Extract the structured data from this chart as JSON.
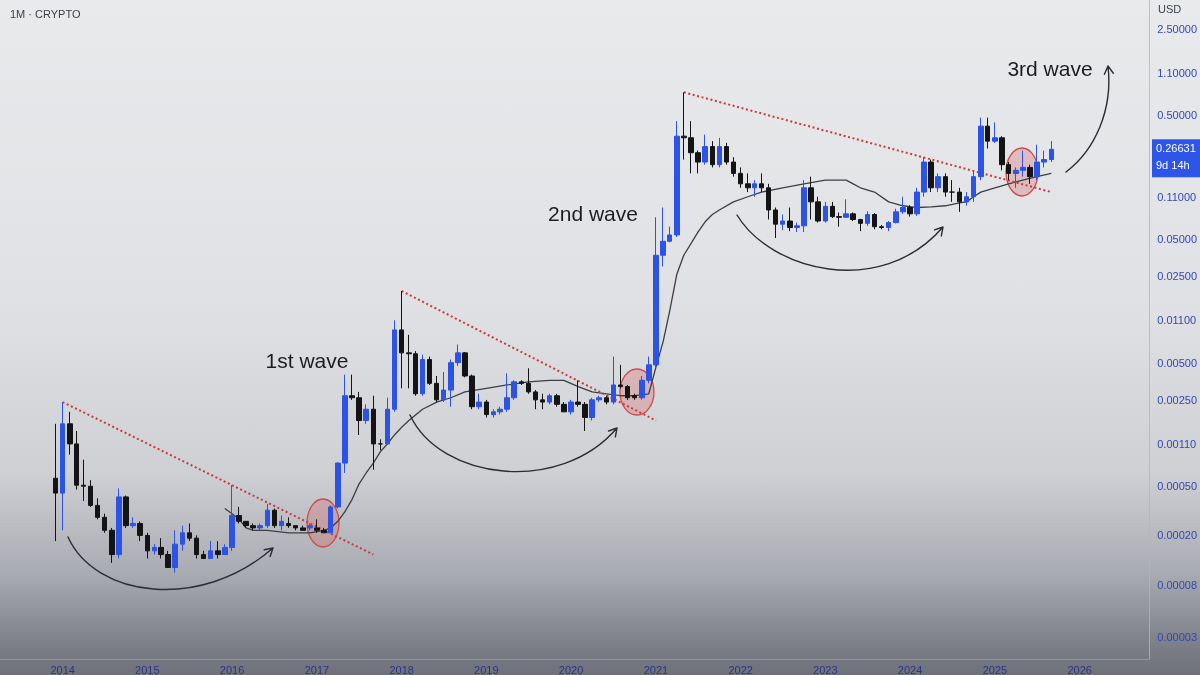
{
  "chart_data": {
    "type": "candlestick",
    "title": "1M · CRYPTO",
    "ylabel": "USD",
    "x": [
      "2013-12",
      "2014-01",
      "2014-02",
      "2014-03",
      "2014-04",
      "2014-05",
      "2014-06",
      "2014-07",
      "2014-08",
      "2014-09",
      "2014-10",
      "2014-11",
      "2014-12",
      "2015-01",
      "2015-02",
      "2015-03",
      "2015-04",
      "2015-05",
      "2015-06",
      "2015-07",
      "2015-08",
      "2015-09",
      "2015-10",
      "2015-11",
      "2015-12",
      "2016-01",
      "2016-02",
      "2016-03",
      "2016-04",
      "2016-05",
      "2016-06",
      "2016-07",
      "2016-08",
      "2016-09",
      "2016-10",
      "2016-11",
      "2016-12",
      "2017-01",
      "2017-02",
      "2017-03",
      "2017-04",
      "2017-05",
      "2017-06",
      "2017-07",
      "2017-08",
      "2017-09",
      "2017-10",
      "2017-11",
      "2017-12",
      "2018-01",
      "2018-02",
      "2018-03",
      "2018-04",
      "2018-05",
      "2018-06",
      "2018-07",
      "2018-08",
      "2018-09",
      "2018-10",
      "2018-11",
      "2018-12",
      "2019-01",
      "2019-02",
      "2019-03",
      "2019-04",
      "2019-05",
      "2019-06",
      "2019-07",
      "2019-08",
      "2019-09",
      "2019-10",
      "2019-11",
      "2019-12",
      "2020-01",
      "2020-02",
      "2020-03",
      "2020-04",
      "2020-05",
      "2020-06",
      "2020-07",
      "2020-08",
      "2020-09",
      "2020-10",
      "2020-11",
      "2020-12",
      "2021-01",
      "2021-02",
      "2021-03",
      "2021-04",
      "2021-05",
      "2021-06",
      "2021-07",
      "2021-08",
      "2021-09",
      "2021-10",
      "2021-11",
      "2021-12",
      "2022-01",
      "2022-02",
      "2022-03",
      "2022-04",
      "2022-05",
      "2022-06",
      "2022-07",
      "2022-08",
      "2022-09",
      "2022-10",
      "2022-11",
      "2022-12",
      "2023-01",
      "2023-02",
      "2023-03",
      "2023-04",
      "2023-05",
      "2023-06",
      "2023-07",
      "2023-08",
      "2023-09",
      "2023-10",
      "2023-11",
      "2023-12",
      "2024-01",
      "2024-02",
      "2024-03",
      "2024-04",
      "2024-05",
      "2024-06",
      "2024-07",
      "2024-08",
      "2024-09",
      "2024-10",
      "2024-11",
      "2024-12",
      "2025-01",
      "2025-02",
      "2025-03",
      "2025-04",
      "2025-05",
      "2025-06",
      "2025-07",
      "2025-08",
      "2025-09"
    ],
    "ohlc": [
      [
        0.00058,
        0.0016,
        0.00018,
        0.00044
      ],
      [
        0.00044,
        0.0024,
        0.00022,
        0.0016
      ],
      [
        0.0016,
        0.002,
        0.0009,
        0.0011
      ],
      [
        0.0011,
        0.0014,
        0.00047,
        0.00051
      ],
      [
        0.00051,
        0.00082,
        0.00038,
        0.0005
      ],
      [
        0.0005,
        0.00056,
        0.00034,
        0.00035
      ],
      [
        0.00035,
        0.0004,
        0.00027,
        0.00028
      ],
      [
        0.00028,
        0.0003,
        0.00021,
        0.00022
      ],
      [
        0.00022,
        0.00023,
        0.00012,
        0.00014
      ],
      [
        0.00014,
        0.00048,
        0.00013,
        0.00041
      ],
      [
        0.00041,
        0.00042,
        0.00023,
        0.00024
      ],
      [
        0.00024,
        0.00028,
        0.00023,
        0.00025
      ],
      [
        0.00025,
        0.00026,
        0.00018,
        0.0002
      ],
      [
        0.0002,
        0.00021,
        0.00013,
        0.00015
      ],
      [
        0.00015,
        0.00017,
        0.00014,
        0.00016
      ],
      [
        0.00016,
        0.00019,
        0.00013,
        0.00014
      ],
      [
        0.00014,
        0.00015,
        0.00011,
        0.00011
      ],
      [
        0.00011,
        0.00022,
        0.0001,
        0.00017
      ],
      [
        0.00017,
        0.00024,
        0.00015,
        0.00021
      ],
      [
        0.00021,
        0.00025,
        0.00018,
        0.00019
      ],
      [
        0.00019,
        0.0002,
        0.00013,
        0.00014
      ],
      [
        0.00014,
        0.00015,
        0.00013,
        0.00013
      ],
      [
        0.00013,
        0.00018,
        0.00013,
        0.00015
      ],
      [
        0.00015,
        0.00018,
        0.00013,
        0.00014
      ],
      [
        0.00014,
        0.00017,
        0.00014,
        0.00016
      ],
      [
        0.00016,
        0.00051,
        0.00015,
        0.00029
      ],
      [
        0.00029,
        0.00034,
        0.00025,
        0.00026
      ],
      [
        0.00026,
        0.00026,
        0.00023,
        0.00024
      ],
      [
        0.00024,
        0.00025,
        0.00022,
        0.00023
      ],
      [
        0.00023,
        0.00025,
        0.00022,
        0.00024
      ],
      [
        0.00024,
        0.00036,
        0.00023,
        0.00032
      ],
      [
        0.00032,
        0.00033,
        0.00023,
        0.00024
      ],
      [
        0.00024,
        0.00029,
        0.00022,
        0.00026
      ],
      [
        0.00025,
        0.00028,
        0.00023,
        0.00024
      ],
      [
        0.00024,
        0.00024,
        0.00022,
        0.00023
      ],
      [
        0.00023,
        0.00024,
        0.00022,
        0.00022
      ],
      [
        0.00023,
        0.00025,
        0.00022,
        0.00024
      ],
      [
        0.00023,
        0.00027,
        0.00021,
        0.00022
      ],
      [
        0.00022,
        0.00023,
        0.00021,
        0.00021
      ],
      [
        0.00021,
        0.00035,
        0.00021,
        0.00034
      ],
      [
        0.00034,
        0.00078,
        0.00033,
        0.00077
      ],
      [
        0.00077,
        0.004,
        0.00064,
        0.0027
      ],
      [
        0.0027,
        0.004,
        0.0025,
        0.0026
      ],
      [
        0.0026,
        0.0029,
        0.0013,
        0.0017
      ],
      [
        0.0017,
        0.0023,
        0.0016,
        0.0021
      ],
      [
        0.0021,
        0.0027,
        0.00068,
        0.0011
      ],
      [
        0.0011,
        0.0012,
        0.00098,
        0.0011
      ],
      [
        0.0011,
        0.0026,
        0.0011,
        0.0021
      ],
      [
        0.0021,
        0.011,
        0.002,
        0.0092
      ],
      [
        0.0092,
        0.019,
        0.0031,
        0.006
      ],
      [
        0.006,
        0.0084,
        0.0031,
        0.0059
      ],
      [
        0.0059,
        0.0062,
        0.0027,
        0.0028
      ],
      [
        0.0028,
        0.0058,
        0.0027,
        0.0053
      ],
      [
        0.0053,
        0.0056,
        0.0033,
        0.0034
      ],
      [
        0.0034,
        0.0039,
        0.0024,
        0.0025
      ],
      [
        0.0025,
        0.0042,
        0.0024,
        0.003
      ],
      [
        0.003,
        0.0053,
        0.0022,
        0.005
      ],
      [
        0.005,
        0.007,
        0.0047,
        0.006
      ],
      [
        0.006,
        0.0061,
        0.0038,
        0.0039
      ],
      [
        0.0039,
        0.004,
        0.0021,
        0.0022
      ],
      [
        0.0022,
        0.0028,
        0.0021,
        0.0024
      ],
      [
        0.0024,
        0.0025,
        0.0018,
        0.0019
      ],
      [
        0.0019,
        0.0021,
        0.0018,
        0.002
      ],
      [
        0.002,
        0.0022,
        0.0019,
        0.0021
      ],
      [
        0.0021,
        0.0041,
        0.002,
        0.0026
      ],
      [
        0.0026,
        0.0036,
        0.0025,
        0.0035
      ],
      [
        0.0035,
        0.0036,
        0.0033,
        0.0034
      ],
      [
        0.0034,
        0.0045,
        0.0028,
        0.0029
      ],
      [
        0.0029,
        0.003,
        0.0021,
        0.0025
      ],
      [
        0.0025,
        0.0028,
        0.0021,
        0.0024
      ],
      [
        0.0024,
        0.0028,
        0.0023,
        0.0027
      ],
      [
        0.0027,
        0.0028,
        0.0022,
        0.0023
      ],
      [
        0.0023,
        0.0024,
        0.002,
        0.002
      ],
      [
        0.002,
        0.0025,
        0.0019,
        0.0024
      ],
      [
        0.0024,
        0.0036,
        0.0022,
        0.0023
      ],
      [
        0.0023,
        0.0024,
        0.0014,
        0.0018
      ],
      [
        0.0018,
        0.0026,
        0.0017,
        0.0025
      ],
      [
        0.0025,
        0.0027,
        0.0024,
        0.0026
      ],
      [
        0.0026,
        0.0027,
        0.0023,
        0.0024
      ],
      [
        0.0024,
        0.0056,
        0.0023,
        0.0033
      ],
      [
        0.0033,
        0.0048,
        0.0031,
        0.0032
      ],
      [
        0.0032,
        0.0033,
        0.0025,
        0.0026
      ],
      [
        0.0027,
        0.0028,
        0.0025,
        0.0026
      ],
      [
        0.0026,
        0.0039,
        0.0025,
        0.0036
      ],
      [
        0.0036,
        0.0056,
        0.0034,
        0.0048
      ],
      [
        0.0048,
        0.075,
        0.0046,
        0.037
      ],
      [
        0.037,
        0.09,
        0.03,
        0.048
      ],
      [
        0.048,
        0.063,
        0.047,
        0.054
      ],
      [
        0.054,
        0.45,
        0.052,
        0.34
      ],
      [
        0.34,
        0.77,
        0.22,
        0.33
      ],
      [
        0.33,
        0.45,
        0.17,
        0.25
      ],
      [
        0.25,
        0.26,
        0.17,
        0.21
      ],
      [
        0.21,
        0.35,
        0.2,
        0.28
      ],
      [
        0.28,
        0.31,
        0.19,
        0.2
      ],
      [
        0.2,
        0.33,
        0.19,
        0.28
      ],
      [
        0.28,
        0.3,
        0.2,
        0.21
      ],
      [
        0.21,
        0.23,
        0.16,
        0.17
      ],
      [
        0.17,
        0.19,
        0.13,
        0.14
      ],
      [
        0.14,
        0.17,
        0.12,
        0.13
      ],
      [
        0.13,
        0.15,
        0.11,
        0.14
      ],
      [
        0.14,
        0.17,
        0.12,
        0.13
      ],
      [
        0.13,
        0.14,
        0.072,
        0.086
      ],
      [
        0.086,
        0.09,
        0.051,
        0.066
      ],
      [
        0.066,
        0.079,
        0.059,
        0.07
      ],
      [
        0.07,
        0.09,
        0.058,
        0.062
      ],
      [
        0.062,
        0.068,
        0.057,
        0.064
      ],
      [
        0.064,
        0.15,
        0.057,
        0.13
      ],
      [
        0.13,
        0.16,
        0.072,
        0.1
      ],
      [
        0.1,
        0.11,
        0.068,
        0.07
      ],
      [
        0.07,
        0.1,
        0.068,
        0.092
      ],
      [
        0.092,
        0.1,
        0.074,
        0.076
      ],
      [
        0.076,
        0.082,
        0.063,
        0.075
      ],
      [
        0.075,
        0.105,
        0.074,
        0.08
      ],
      [
        0.08,
        0.082,
        0.07,
        0.072
      ],
      [
        0.072,
        0.073,
        0.058,
        0.067
      ],
      [
        0.067,
        0.084,
        0.064,
        0.079
      ],
      [
        0.079,
        0.081,
        0.06,
        0.063
      ],
      [
        0.063,
        0.065,
        0.06,
        0.062
      ],
      [
        0.062,
        0.07,
        0.058,
        0.068
      ],
      [
        0.068,
        0.088,
        0.067,
        0.083
      ],
      [
        0.083,
        0.11,
        0.08,
        0.09
      ],
      [
        0.09,
        0.094,
        0.076,
        0.08
      ],
      [
        0.08,
        0.13,
        0.077,
        0.12
      ],
      [
        0.12,
        0.23,
        0.11,
        0.21
      ],
      [
        0.21,
        0.22,
        0.12,
        0.13
      ],
      [
        0.13,
        0.17,
        0.12,
        0.16
      ],
      [
        0.16,
        0.17,
        0.11,
        0.12
      ],
      [
        0.12,
        0.15,
        0.1,
        0.12
      ],
      [
        0.12,
        0.13,
        0.083,
        0.1
      ],
      [
        0.1,
        0.12,
        0.093,
        0.11
      ],
      [
        0.11,
        0.18,
        0.1,
        0.16
      ],
      [
        0.16,
        0.48,
        0.15,
        0.41
      ],
      [
        0.41,
        0.48,
        0.27,
        0.31
      ],
      [
        0.31,
        0.44,
        0.3,
        0.33
      ],
      [
        0.33,
        0.34,
        0.18,
        0.2
      ],
      [
        0.2,
        0.21,
        0.15,
        0.17
      ],
      [
        0.17,
        0.19,
        0.13,
        0.18
      ],
      [
        0.18,
        0.26,
        0.16,
        0.19
      ],
      [
        0.19,
        0.2,
        0.14,
        0.16
      ],
      [
        0.16,
        0.29,
        0.15,
        0.21
      ],
      [
        0.21,
        0.26,
        0.19,
        0.22
      ],
      [
        0.22,
        0.31,
        0.21,
        0.26631
      ]
    ],
    "colors": [
      "#141414",
      "#2c52e6",
      "#141414",
      "#141414",
      "#141414",
      "#141414",
      "#141414",
      "#141414",
      "#141414",
      "#2c52e6",
      "#141414",
      "#2c52e6",
      "#141414",
      "#141414",
      "#2c52e6",
      "#141414",
      "#141414",
      "#2c52e6",
      "#2c52e6",
      "#141414",
      "#141414",
      "#141414",
      "#2c52e6",
      "#141414",
      "#2c52e6",
      "#2c52e6",
      "#141414",
      "#141414",
      "#141414",
      "#2c52e6",
      "#2c52e6",
      "#141414",
      "#2c52e6",
      "#141414",
      "#141414",
      "#141414",
      "#2c52e6",
      "#141414",
      "#141414",
      "#2c52e6",
      "#2c52e6",
      "#2c52e6",
      "#141414",
      "#141414",
      "#2c52e6",
      "#141414",
      "#141414",
      "#2c52e6",
      "#2c52e6",
      "#141414",
      "#141414",
      "#141414",
      "#2c52e6",
      "#141414",
      "#141414",
      "#2c52e6",
      "#2c52e6",
      "#2c52e6",
      "#141414",
      "#141414",
      "#2c52e6",
      "#141414",
      "#2c52e6",
      "#2c52e6",
      "#2c52e6",
      "#2c52e6",
      "#141414",
      "#141414",
      "#141414",
      "#141414",
      "#2c52e6",
      "#141414",
      "#141414",
      "#2c52e6",
      "#141414",
      "#141414",
      "#2c52e6",
      "#2c52e6",
      "#141414",
      "#2c52e6",
      "#141414",
      "#141414",
      "#141414",
      "#2c52e6",
      "#2c52e6",
      "#2c52e6",
      "#2c52e6",
      "#2c52e6",
      "#2c52e6",
      "#141414",
      "#141414",
      "#141414",
      "#2c52e6",
      "#141414",
      "#2c52e6",
      "#141414",
      "#141414",
      "#141414",
      "#141414",
      "#2c52e6",
      "#141414",
      "#141414",
      "#141414",
      "#2c52e6",
      "#141414",
      "#2c52e6",
      "#2c52e6",
      "#141414",
      "#141414",
      "#2c52e6",
      "#141414",
      "#141414",
      "#2c52e6",
      "#141414",
      "#141414",
      "#2c52e6",
      "#141414",
      "#141414",
      "#2c52e6",
      "#2c52e6",
      "#2c52e6",
      "#141414",
      "#2c52e6",
      "#2c52e6",
      "#141414",
      "#2c52e6",
      "#141414",
      "#141414",
      "#141414",
      "#2c52e6",
      "#2c52e6",
      "#2c52e6",
      "#141414",
      "#2c52e6",
      "#141414",
      "#141414",
      "#2c52e6",
      "#2c52e6",
      "#141414",
      "#2c52e6",
      "#2c52e6",
      "#2c52e6"
    ],
    "series": [
      {
        "type": "line",
        "color": "#3b3f45",
        "line_style": "solid",
        "x": [
          "2015-12",
          "2016-01",
          "2016-02",
          "2016-03",
          "2016-04",
          "2016-06",
          "2016-09",
          "2016-12",
          "2017-02",
          "2017-03",
          "2017-04",
          "2017-05",
          "2017-06",
          "2017-07",
          "2017-08",
          "2017-09",
          "2017-10",
          "2017-11",
          "2017-12",
          "2018-01",
          "2018-02",
          "2018-04",
          "2018-06",
          "2018-08",
          "2018-10",
          "2019-01",
          "2019-04",
          "2019-07",
          "2019-10",
          "2019-12",
          "2020-02",
          "2020-04",
          "2020-06",
          "2020-08",
          "2020-10",
          "2020-12",
          "2021-01",
          "2021-02",
          "2021-03",
          "2021-04",
          "2021-05",
          "2021-06",
          "2021-07",
          "2021-08",
          "2021-09",
          "2021-10",
          "2021-12",
          "2022-02",
          "2022-04",
          "2022-07",
          "2022-10",
          "2023-01",
          "2023-04",
          "2023-05",
          "2023-06",
          "2023-08",
          "2023-10",
          "2023-12",
          "2024-02",
          "2024-04",
          "2024-06",
          "2024-08",
          "2024-09",
          "2024-10",
          "2024-11",
          "2025-01",
          "2025-03",
          "2025-05",
          "2025-07",
          "2025-09"
        ],
        "values": [
          0.00033,
          0.0003,
          0.00027,
          0.00023,
          0.00022,
          0.00022,
          0.00021,
          0.00021,
          0.00022,
          0.00023,
          0.00026,
          0.00031,
          0.00039,
          0.00052,
          0.00064,
          0.00077,
          0.00095,
          0.0011,
          0.0013,
          0.0015,
          0.0017,
          0.0021,
          0.0024,
          0.0026,
          0.0029,
          0.0031,
          0.0033,
          0.0035,
          0.0036,
          0.0036,
          0.0032,
          0.0029,
          0.0028,
          0.0027,
          0.0027,
          0.0028,
          0.0046,
          0.0074,
          0.013,
          0.026,
          0.037,
          0.046,
          0.057,
          0.069,
          0.079,
          0.086,
          0.1,
          0.11,
          0.12,
          0.13,
          0.14,
          0.15,
          0.15,
          0.14,
          0.13,
          0.12,
          0.1,
          0.093,
          0.09,
          0.091,
          0.093,
          0.098,
          0.1,
          0.11,
          0.12,
          0.13,
          0.14,
          0.15,
          0.16,
          0.17
        ]
      },
      {
        "type": "line",
        "color": "#c8393b",
        "line_style": "dotted",
        "x": [
          "2014-01",
          "2017-09"
        ],
        "values": [
          0.0024,
          0.00014
        ]
      },
      {
        "type": "line",
        "color": "#c8393b",
        "line_style": "dotted",
        "x": [
          "2018-01",
          "2021-01"
        ],
        "values": [
          0.019,
          0.0017
        ]
      },
      {
        "type": "line",
        "color": "#c8393b",
        "line_style": "dotted",
        "x": [
          "2021-05",
          "2025-09"
        ],
        "values": [
          0.77,
          0.12
        ]
      }
    ],
    "xlim": [
      "2013-04-06",
      "2026-10-28"
    ],
    "xticks": [
      "2014",
      "2015",
      "2016",
      "2017",
      "2018",
      "2019",
      "2020",
      "2021",
      "2022",
      "2023",
      "2024",
      "2025",
      "2026"
    ],
    "ylim": [
      2e-05,
      4.3
    ],
    "yticks": [
      {
        "value": 3e-05,
        "label": "0.00003"
      },
      {
        "value": 8e-05,
        "label": "0.00008"
      },
      {
        "value": 0.0002,
        "label": "0.00020"
      },
      {
        "value": 0.0005,
        "label": "0.00050"
      },
      {
        "value": 0.0011,
        "label": "0.00110"
      },
      {
        "value": 0.0025,
        "label": "0.00250"
      },
      {
        "value": 0.005,
        "label": "0.00500"
      },
      {
        "value": 0.011,
        "label": "0.01100"
      },
      {
        "value": 0.025,
        "label": "0.02500"
      },
      {
        "value": 0.05,
        "label": "0.05000"
      },
      {
        "value": 0.11,
        "label": "0.11000"
      },
      {
        "value": 0.5,
        "label": "0.50000"
      },
      {
        "value": 1.1,
        "label": "1.10000"
      },
      {
        "value": 2.5,
        "label": "2.50000"
      }
    ],
    "log": "y",
    "marker": "none",
    "annotations": [
      "1st wave",
      "2nd wave",
      "3rd wave",
      "0.26631",
      "9d 14h"
    ]
  }
}
